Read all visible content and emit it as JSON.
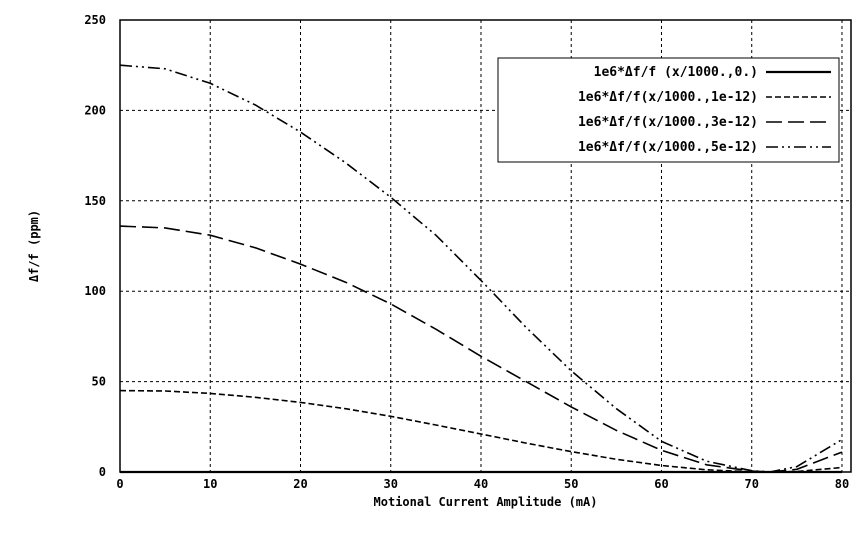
{
  "chart_data": {
    "type": "line",
    "title": "",
    "xlabel": "Motional Current Amplitude (mA)",
    "ylabel": "Δf/f (ppm)",
    "xlim": [
      0,
      81
    ],
    "ylim": [
      0,
      250
    ],
    "x_ticks": [
      0,
      10,
      20,
      30,
      40,
      50,
      60,
      70,
      80
    ],
    "y_ticks": [
      0,
      50,
      100,
      150,
      200,
      250
    ],
    "grid": true,
    "legend_position": "top-right",
    "series": [
      {
        "name": "1e6*Δf/f (x/1000.,0.)",
        "dash": "solid",
        "x": [
          0,
          10,
          20,
          30,
          40,
          50,
          60,
          70,
          80
        ],
        "y": [
          0,
          0,
          0,
          0,
          0,
          0,
          0,
          0,
          0
        ]
      },
      {
        "name": "1e6*Δf/f(x/1000.,1e-12)",
        "dash": "short-dash",
        "x": [
          0,
          5,
          10,
          15,
          20,
          25,
          30,
          35,
          40,
          45,
          50,
          55,
          60,
          65,
          70,
          72,
          75,
          80
        ],
        "y": [
          45,
          44.8,
          43.5,
          41.3,
          38.5,
          35,
          30.8,
          26,
          21,
          16,
          11.3,
          7,
          3.6,
          1.2,
          0.1,
          0,
          0.3,
          2.5
        ]
      },
      {
        "name": "1e6*Δf/f(x/1000.,3e-12)",
        "dash": "long-dash",
        "x": [
          0,
          5,
          10,
          15,
          20,
          25,
          30,
          35,
          40,
          45,
          50,
          55,
          60,
          65,
          70,
          72,
          75,
          80
        ],
        "y": [
          136,
          135,
          131,
          124,
          115,
          105,
          93,
          79,
          64,
          50,
          36,
          23,
          12,
          4,
          0.5,
          0,
          1.5,
          11
        ]
      },
      {
        "name": "1e6*Δf/f(x/1000.,5e-12)",
        "dash": "dash-dot-dot",
        "x": [
          0,
          5,
          10,
          15,
          20,
          25,
          30,
          35,
          40,
          45,
          50,
          55,
          60,
          65,
          70,
          72,
          75,
          80
        ],
        "y": [
          225,
          223,
          215,
          203,
          188,
          171,
          152,
          131,
          106,
          80,
          56,
          35,
          17,
          6,
          0.7,
          0,
          3,
          18
        ]
      }
    ]
  }
}
